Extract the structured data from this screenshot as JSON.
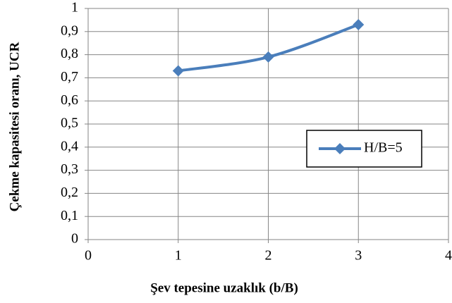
{
  "chart_data": {
    "type": "line",
    "x_label": "Şev tepesine uzaklık (b/B)",
    "y_label": "Çekme kapasitesi oranı, UCR",
    "x": [
      1,
      2,
      3
    ],
    "series": [
      {
        "name": "H/B=5",
        "color": "#4a7ebb",
        "values": [
          0.73,
          0.79,
          0.93
        ]
      }
    ],
    "xlim": [
      0,
      4
    ],
    "xticks": [
      0,
      1,
      2,
      3,
      4
    ],
    "ylim": [
      0,
      1
    ],
    "yticks": [
      0,
      {
        "value": 0.1,
        "label": "0,1"
      },
      {
        "value": 0.2,
        "label": "0,2"
      },
      {
        "value": 0.3,
        "label": "0,3"
      },
      {
        "value": 0.4,
        "label": "0,4"
      },
      {
        "value": 0.5,
        "label": "0,5"
      },
      {
        "value": 0.6,
        "label": "0,6"
      },
      {
        "value": 0.7,
        "label": "0,7"
      },
      {
        "value": 0.8,
        "label": "0,8"
      },
      {
        "value": 0.9,
        "label": "0,9"
      },
      1
    ],
    "grid": true,
    "smooth": true
  }
}
